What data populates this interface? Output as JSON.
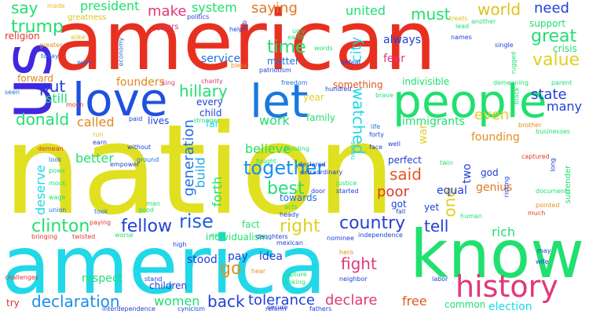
{
  "words": [
    {
      "text": "nation",
      "color": "#e0e020"
    },
    {
      "text": "american",
      "color": "#e83020"
    },
    {
      "text": "america",
      "color": "#20d8e8"
    },
    {
      "text": "know",
      "color": "#20e070"
    },
    {
      "text": "us",
      "color": "#4028e0"
    },
    {
      "text": "people",
      "color": "#20e070"
    },
    {
      "text": "love",
      "color": "#2050e0"
    },
    {
      "text": "let",
      "color": "#1878e0"
    },
    {
      "text": "history",
      "color": "#e03878"
    },
    {
      "text": "watched",
      "color": "#20d8e8"
    },
    {
      "text": "together",
      "color": "#1890e8"
    },
    {
      "text": "country",
      "color": "#2840d0"
    },
    {
      "text": "hillary",
      "color": "#20e070"
    },
    {
      "text": "declaration",
      "color": "#1890e8"
    },
    {
      "text": "rise",
      "color": "#2060e0"
    },
    {
      "text": "right",
      "color": "#e0d020"
    },
    {
      "text": "best",
      "color": "#20e070"
    },
    {
      "text": "fellow",
      "color": "#2040d8"
    },
    {
      "text": "clinton",
      "color": "#20e070"
    },
    {
      "text": "generation",
      "color": "#2070e0"
    },
    {
      "text": "time",
      "color": "#20e070"
    },
    {
      "text": "saying",
      "color": "#e07820"
    },
    {
      "text": "world",
      "color": "#e0c020"
    },
    {
      "text": "need",
      "color": "#2040d8"
    },
    {
      "text": "great",
      "color": "#20e070"
    },
    {
      "text": "value",
      "color": "#e0d020"
    },
    {
      "text": "must",
      "color": "#20e070"
    },
    {
      "text": "trump",
      "color": "#20e070"
    },
    {
      "text": "say",
      "color": "#20e070"
    },
    {
      "text": "make",
      "color": "#e03878"
    },
    {
      "text": "put",
      "color": "#2040d8"
    },
    {
      "text": "donald",
      "color": "#20e070"
    },
    {
      "text": "called",
      "color": "#e08820"
    },
    {
      "text": "build",
      "color": "#20a8e0"
    },
    {
      "text": "forth",
      "color": "#20e070"
    },
    {
      "text": "said",
      "color": "#e05820"
    },
    {
      "text": "tell",
      "color": "#2040d8"
    },
    {
      "text": "poor",
      "color": "#e03828"
    },
    {
      "text": "one",
      "color": "#e0d020"
    },
    {
      "text": "go",
      "color": "#e09020"
    },
    {
      "text": "fight",
      "color": "#e03878"
    },
    {
      "text": "back",
      "color": "#2040d8"
    },
    {
      "text": "tolerance",
      "color": "#2040d8"
    },
    {
      "text": "declare",
      "color": "#e03878"
    },
    {
      "text": "free",
      "color": "#e05820"
    },
    {
      "text": "women",
      "color": "#20e070"
    },
    {
      "text": "president",
      "color": "#20e070"
    },
    {
      "text": "system",
      "color": "#20e070"
    },
    {
      "text": "united",
      "color": "#20e070"
    },
    {
      "text": "city",
      "color": "#20d8e8"
    },
    {
      "text": "even",
      "color": "#e0d020"
    },
    {
      "text": "state",
      "color": "#2040d8"
    },
    {
      "text": "many",
      "color": "#2040d8"
    },
    {
      "text": "believe",
      "color": "#20e070"
    },
    {
      "text": "better",
      "color": "#20e070"
    },
    {
      "text": "deserve",
      "color": "#20d8e8"
    },
    {
      "text": "work",
      "color": "#20e070"
    },
    {
      "text": "still",
      "color": "#20e070"
    },
    {
      "text": "founders",
      "color": "#e08820"
    },
    {
      "text": "always",
      "color": "#2040d8"
    },
    {
      "text": "fear",
      "color": "#e03878"
    },
    {
      "text": "immigrants",
      "color": "#20e070"
    },
    {
      "text": "founding",
      "color": "#e09020"
    },
    {
      "text": "rich",
      "color": "#20e070"
    },
    {
      "text": "equal",
      "color": "#2040d8"
    },
    {
      "text": "war",
      "color": "#e0d020"
    },
    {
      "text": "two",
      "color": "#2040d8"
    },
    {
      "text": "god",
      "color": "#2040d8"
    },
    {
      "text": "genius",
      "color": "#e07820"
    },
    {
      "text": "yet",
      "color": "#2040d8"
    },
    {
      "text": "idea",
      "color": "#2040d8"
    },
    {
      "text": "stood",
      "color": "#2040d8"
    },
    {
      "text": "pay",
      "color": "#2040d8"
    },
    {
      "text": "respect",
      "color": "#20e070"
    },
    {
      "text": "children",
      "color": "#2040d8"
    },
    {
      "text": "election",
      "color": "#20d8e8"
    },
    {
      "text": "common",
      "color": "#20e070"
    },
    {
      "text": "service",
      "color": "#2070e0"
    },
    {
      "text": "matter",
      "color": "#2070e0"
    },
    {
      "text": "something",
      "color": "#e05820"
    },
    {
      "text": "year",
      "color": "#e0d020"
    },
    {
      "text": "family",
      "color": "#20e070"
    },
    {
      "text": "every",
      "color": "#2040d8"
    },
    {
      "text": "child",
      "color": "#2040d8"
    },
    {
      "text": "lives",
      "color": "#2040d8"
    },
    {
      "text": "far",
      "color": "#20d8e8"
    },
    {
      "text": "fact",
      "color": "#20e070"
    },
    {
      "text": "towards",
      "color": "#2070e0"
    },
    {
      "text": "got",
      "color": "#2040d8"
    },
    {
      "text": "perfect",
      "color": "#2040d8"
    },
    {
      "text": "religion",
      "color": "#e03828"
    },
    {
      "text": "forward",
      "color": "#e08820"
    },
    {
      "text": "individualism",
      "color": "#20e070"
    },
    {
      "text": "indivisible",
      "color": "#20e070"
    },
    {
      "text": "support",
      "color": "#20e070"
    },
    {
      "text": "crisis",
      "color": "#20e070"
    },
    {
      "text": "greatness",
      "color": "#e0c020"
    },
    {
      "text": "years",
      "color": "#e03878"
    },
    {
      "text": "made",
      "color": "#e0c020"
    },
    {
      "text": "alike",
      "color": "#e0c020"
    },
    {
      "text": "greater",
      "color": "#e09020"
    },
    {
      "text": "today",
      "color": "#2070e0"
    },
    {
      "text": "want",
      "color": "#2070e0"
    },
    {
      "text": "economy",
      "color": "#2070e0"
    },
    {
      "text": "seen",
      "color": "#2070e0"
    },
    {
      "text": "moon",
      "color": "#e03828"
    },
    {
      "text": "politics",
      "color": "#2040d8"
    },
    {
      "text": "help",
      "color": "#2040d8"
    },
    {
      "text": "job",
      "color": "#2040d8"
    },
    {
      "text": "ugly",
      "color": "#20e070"
    },
    {
      "text": "earth",
      "color": "#20e070"
    },
    {
      "text": "words",
      "color": "#20e070"
    },
    {
      "text": "patriotism",
      "color": "#2040d8"
    },
    {
      "text": "bless",
      "color": "#e09020"
    },
    {
      "text": "defeat",
      "color": "#2040d8"
    },
    {
      "text": "names",
      "color": "#2040d8"
    },
    {
      "text": "treats",
      "color": "#e0c020"
    },
    {
      "text": "lead",
      "color": "#20e070"
    },
    {
      "text": "another",
      "color": "#20e070"
    },
    {
      "text": "single",
      "color": "#2040d8"
    },
    {
      "text": "rugged",
      "color": "#20e070"
    },
    {
      "text": "parent",
      "color": "#20e070"
    },
    {
      "text": "black",
      "color": "#20e070"
    },
    {
      "text": "brave",
      "color": "#20e070"
    },
    {
      "text": "freedom",
      "color": "#2070e0"
    },
    {
      "text": "hundred",
      "color": "#2040d8"
    },
    {
      "text": "charity",
      "color": "#e03878"
    },
    {
      "text": "king",
      "color": "#e03878"
    },
    {
      "text": "paid",
      "color": "#2040d8"
    },
    {
      "text": "earn",
      "color": "#2040d8"
    },
    {
      "text": "run",
      "color": "#e0c020"
    },
    {
      "text": "demean",
      "color": "#e03828"
    },
    {
      "text": "look",
      "color": "#2070e0"
    },
    {
      "text": "pows",
      "color": "#20e070"
    },
    {
      "text": "mock",
      "color": "#20e070"
    },
    {
      "text": "wage",
      "color": "#20e070"
    },
    {
      "text": "union",
      "color": "#2070e0"
    },
    {
      "text": "without",
      "color": "#2040d8"
    },
    {
      "text": "empower",
      "color": "#2040d8"
    },
    {
      "text": "ground",
      "color": "#2070e0"
    },
    {
      "text": "took",
      "color": "#2070e0"
    },
    {
      "text": "good",
      "color": "#20e070"
    },
    {
      "text": "man",
      "color": "#20e070"
    },
    {
      "text": "life",
      "color": "#2070e0"
    },
    {
      "text": "forty",
      "color": "#2040d8"
    },
    {
      "text": "well",
      "color": "#2040d8"
    },
    {
      "text": "never",
      "color": "#20d8e8"
    },
    {
      "text": "justice",
      "color": "#20e070"
    },
    {
      "text": "started",
      "color": "#2040d8"
    },
    {
      "text": "acts",
      "color": "#20e070"
    },
    {
      "text": "fought",
      "color": "#20e070"
    },
    {
      "text": "extraordinary",
      "color": "#2040d8"
    },
    {
      "text": "declared",
      "color": "#2040d8"
    },
    {
      "text": "door",
      "color": "#2040d8"
    },
    {
      "text": "building",
      "color": "#20e070"
    },
    {
      "text": "face",
      "color": "#2040d8"
    },
    {
      "text": "brother",
      "color": "#e09020"
    },
    {
      "text": "businesses",
      "color": "#20e070"
    },
    {
      "text": "demeaning",
      "color": "#20e070"
    },
    {
      "text": "stronger",
      "color": "#20e070"
    },
    {
      "text": "captured",
      "color": "#e03828"
    },
    {
      "text": "documents",
      "color": "#20e070"
    },
    {
      "text": "long",
      "color": "#2040d8"
    },
    {
      "text": "surrender",
      "color": "#20e070"
    },
    {
      "text": "risking",
      "color": "#2040d8"
    },
    {
      "text": "pointed",
      "color": "#e09020"
    },
    {
      "text": "much",
      "color": "#e03828"
    },
    {
      "text": "human",
      "color": "#20e070"
    },
    {
      "text": "fall",
      "color": "#2040d8"
    },
    {
      "text": "may",
      "color": "#2040d8"
    },
    {
      "text": "wife",
      "color": "#2040d8"
    },
    {
      "text": "labor",
      "color": "#2040d8"
    },
    {
      "text": "hero",
      "color": "#e09020"
    },
    {
      "text": "neighbor",
      "color": "#2040d8"
    },
    {
      "text": "capture",
      "color": "#20e070"
    },
    {
      "text": "looking",
      "color": "#20e070"
    },
    {
      "text": "secure",
      "color": "#2040d8"
    },
    {
      "text": "fathers",
      "color": "#2040d8"
    },
    {
      "text": "reform",
      "color": "#2040d8"
    },
    {
      "text": "cynicism",
      "color": "#2040d8"
    },
    {
      "text": "interdependence",
      "color": "#2040d8"
    },
    {
      "text": "bringing",
      "color": "#e03828"
    },
    {
      "text": "twisted",
      "color": "#e03828"
    },
    {
      "text": "worse",
      "color": "#20e070"
    },
    {
      "text": "paying",
      "color": "#e03828"
    },
    {
      "text": "challenges",
      "color": "#e03828"
    },
    {
      "text": "high",
      "color": "#2040d8"
    },
    {
      "text": "stand",
      "color": "#2040d8"
    },
    {
      "text": "hear",
      "color": "#e09020"
    },
    {
      "text": "mexican",
      "color": "#2040d8"
    },
    {
      "text": "nominee",
      "color": "#2040d8"
    },
    {
      "text": "independence",
      "color": "#2040d8"
    },
    {
      "text": "daughters",
      "color": "#2040d8"
    },
    {
      "text": "heady",
      "color": "#2040d8"
    },
    {
      "text": "none",
      "color": "#20e070"
    },
    {
      "text": "twin",
      "color": "#20e070"
    },
    {
      "text": "try",
      "color": "#e03828"
    }
  ]
}
